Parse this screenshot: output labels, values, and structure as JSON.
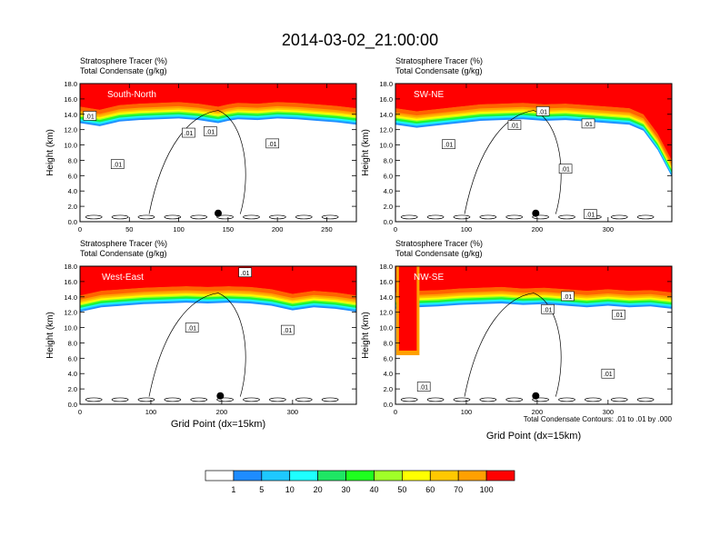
{
  "title": "2014-03-02_21:00:00",
  "shared": {
    "header_line1": "Stratosphere Tracer   (%)",
    "header_line2": "Total Condensate   (g/kg)",
    "ylabel": "Height (km)",
    "xlabel": "Grid Point (dx=15km)",
    "contour_label": ".01",
    "footnote": "Total Condensate Contours: .01 to .01 by .000"
  },
  "colorbar": {
    "labels": [
      "1",
      "5",
      "10",
      "20",
      "30",
      "40",
      "50",
      "60",
      "70",
      "100"
    ],
    "colors": [
      "#ffffff",
      "#1e8cff",
      "#1ec8ff",
      "#1effff",
      "#1ee664",
      "#1eff1e",
      "#a0ff28",
      "#ffff00",
      "#ffc800",
      "#ffa000",
      "#ff6400",
      "#ff0000"
    ]
  },
  "chart_data": [
    {
      "type": "heatmap",
      "panel_label": "South-North",
      "ylim": [
        0,
        18
      ],
      "yticks": [
        "0.0",
        "2.0",
        "4.0",
        "6.0",
        "8.0",
        "10.0",
        "12.0",
        "14.0",
        "16.0",
        "18.0"
      ],
      "xlim": [
        0,
        280
      ],
      "xticks": [
        0,
        50,
        100,
        150,
        200,
        250
      ],
      "marker": {
        "x": 140,
        "y": 1.1
      },
      "tracer_top": {
        "x": [
          0,
          20,
          40,
          60,
          80,
          100,
          120,
          140,
          150,
          160,
          180,
          200,
          220,
          240,
          260,
          280
        ],
        "base_km": [
          15.0,
          14.6,
          15.2,
          15.4,
          15.5,
          15.6,
          15.4,
          15.0,
          15.3,
          15.5,
          15.4,
          15.6,
          15.5,
          15.3,
          15.1,
          14.8
        ]
      },
      "contour_labels": [
        {
          "x": 10,
          "y": 13.8
        },
        {
          "x": 110,
          "y": 11.6
        },
        {
          "x": 132,
          "y": 11.8
        },
        {
          "x": 195,
          "y": 10.2
        },
        {
          "x": 38,
          "y": 7.5
        }
      ]
    },
    {
      "type": "heatmap",
      "panel_label": "SW-NE",
      "ylim": [
        0,
        18
      ],
      "yticks": [
        "0.0",
        "2.0",
        "4.0",
        "6.0",
        "8.0",
        "10.0",
        "12.0",
        "14.0",
        "16.0",
        "18.0"
      ],
      "xlim": [
        0,
        390
      ],
      "xticks": [
        0,
        100,
        200,
        300
      ],
      "marker": {
        "x": 198,
        "y": 1.1
      },
      "tracer_top": {
        "x": [
          0,
          30,
          60,
          90,
          120,
          150,
          180,
          210,
          240,
          270,
          300,
          330,
          350,
          370,
          390
        ],
        "base_km": [
          14.8,
          14.4,
          14.7,
          15.0,
          15.3,
          15.4,
          15.5,
          15.3,
          15.4,
          15.2,
          15.0,
          14.8,
          14.0,
          11.5,
          8.0
        ]
      },
      "contour_labels": [
        {
          "x": 75,
          "y": 10.1
        },
        {
          "x": 168,
          "y": 12.6
        },
        {
          "x": 208,
          "y": 14.4
        },
        {
          "x": 272,
          "y": 12.8
        },
        {
          "x": 240,
          "y": 6.9
        },
        {
          "x": 275,
          "y": 1.0
        }
      ]
    },
    {
      "type": "heatmap",
      "panel_label": "West-East",
      "ylim": [
        0,
        18
      ],
      "yticks": [
        "0.0",
        "2.0",
        "4.0",
        "6.0",
        "8.0",
        "10.0",
        "12.0",
        "14.0",
        "16.0",
        "18.0"
      ],
      "xlim": [
        0,
        390
      ],
      "xticks": [
        0,
        100,
        200,
        300
      ],
      "marker": {
        "x": 198,
        "y": 1.1
      },
      "tracer_top": {
        "x": [
          0,
          30,
          60,
          90,
          120,
          150,
          180,
          210,
          240,
          270,
          300,
          330,
          360,
          390
        ],
        "base_km": [
          14.2,
          14.8,
          15.0,
          15.2,
          15.3,
          15.4,
          15.3,
          15.4,
          15.3,
          15.0,
          14.4,
          14.8,
          14.6,
          14.2
        ]
      },
      "contour_labels": [
        {
          "x": 158,
          "y": 10.0
        },
        {
          "x": 233,
          "y": 17.2
        },
        {
          "x": 293,
          "y": 9.7
        }
      ]
    },
    {
      "type": "heatmap",
      "panel_label": "NW-SE",
      "ylim": [
        0,
        18
      ],
      "yticks": [
        "0.0",
        "2.0",
        "4.0",
        "6.0",
        "8.0",
        "10.0",
        "12.0",
        "14.0",
        "16.0",
        "18.0"
      ],
      "xlim": [
        0,
        390
      ],
      "xticks": [
        0,
        100,
        200,
        300
      ],
      "marker": {
        "x": 198,
        "y": 1.1
      },
      "tracer_top": {
        "x": [
          0,
          30,
          60,
          90,
          120,
          150,
          180,
          210,
          240,
          270,
          300,
          330,
          360,
          390
        ],
        "base_km": [
          14.6,
          14.8,
          14.9,
          15.1,
          15.2,
          15.3,
          15.1,
          15.2,
          15.0,
          14.8,
          15.0,
          14.8,
          14.9,
          14.6
        ]
      },
      "deep_intrusion": {
        "x_start": 5,
        "x_end": 30,
        "bottom_km": 7.0
      },
      "contour_labels": [
        {
          "x": 243,
          "y": 14.1
        },
        {
          "x": 215,
          "y": 12.4
        },
        {
          "x": 315,
          "y": 11.7
        },
        {
          "x": 300,
          "y": 4.0
        },
        {
          "x": 40,
          "y": 2.3
        }
      ]
    }
  ]
}
